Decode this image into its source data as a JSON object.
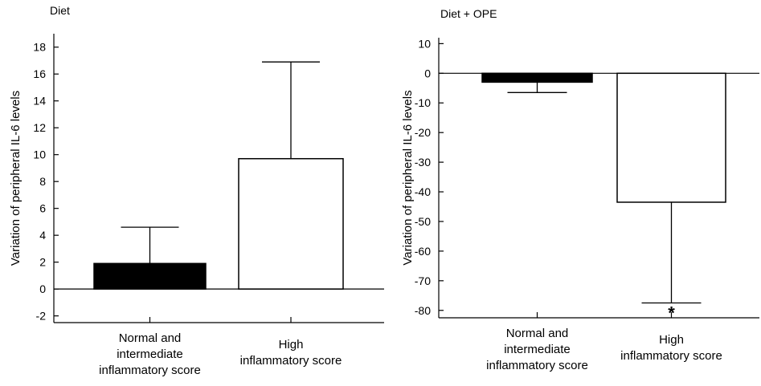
{
  "chart_data": [
    {
      "type": "bar",
      "title": "Diet",
      "xlabel": "",
      "ylabel": "Variation of peripheral IL-6 levels",
      "ylim": [
        -2.5,
        19
      ],
      "yticks": [
        -2,
        0,
        2,
        4,
        6,
        8,
        10,
        12,
        14,
        16,
        18
      ],
      "grid": false,
      "categories": [
        [
          "Normal and",
          "intermediate",
          "inflammatory score"
        ],
        [
          "High",
          "inflammatory score"
        ]
      ],
      "values": [
        1.9,
        9.7
      ],
      "errors": [
        2.7,
        7.2
      ],
      "colors": [
        "#000000",
        "#ffffff"
      ],
      "annotations": [
        "",
        ""
      ]
    },
    {
      "type": "bar",
      "title": "Diet + OPE",
      "xlabel": "",
      "ylabel": "Variation of peripheral IL-6 levels",
      "ylim": [
        -82.5,
        12
      ],
      "yticks": [
        -80,
        -70,
        -60,
        -50,
        -40,
        -30,
        -20,
        -10,
        0,
        10
      ],
      "grid": false,
      "categories": [
        [
          "Normal and",
          "intermediate",
          "inflammatory score"
        ],
        [
          "High",
          "inflammatory score"
        ]
      ],
      "values": [
        -3,
        -43.5
      ],
      "errors": [
        3.5,
        34
      ],
      "colors": [
        "#000000",
        "#ffffff"
      ],
      "annotations": [
        "",
        "*"
      ]
    }
  ]
}
